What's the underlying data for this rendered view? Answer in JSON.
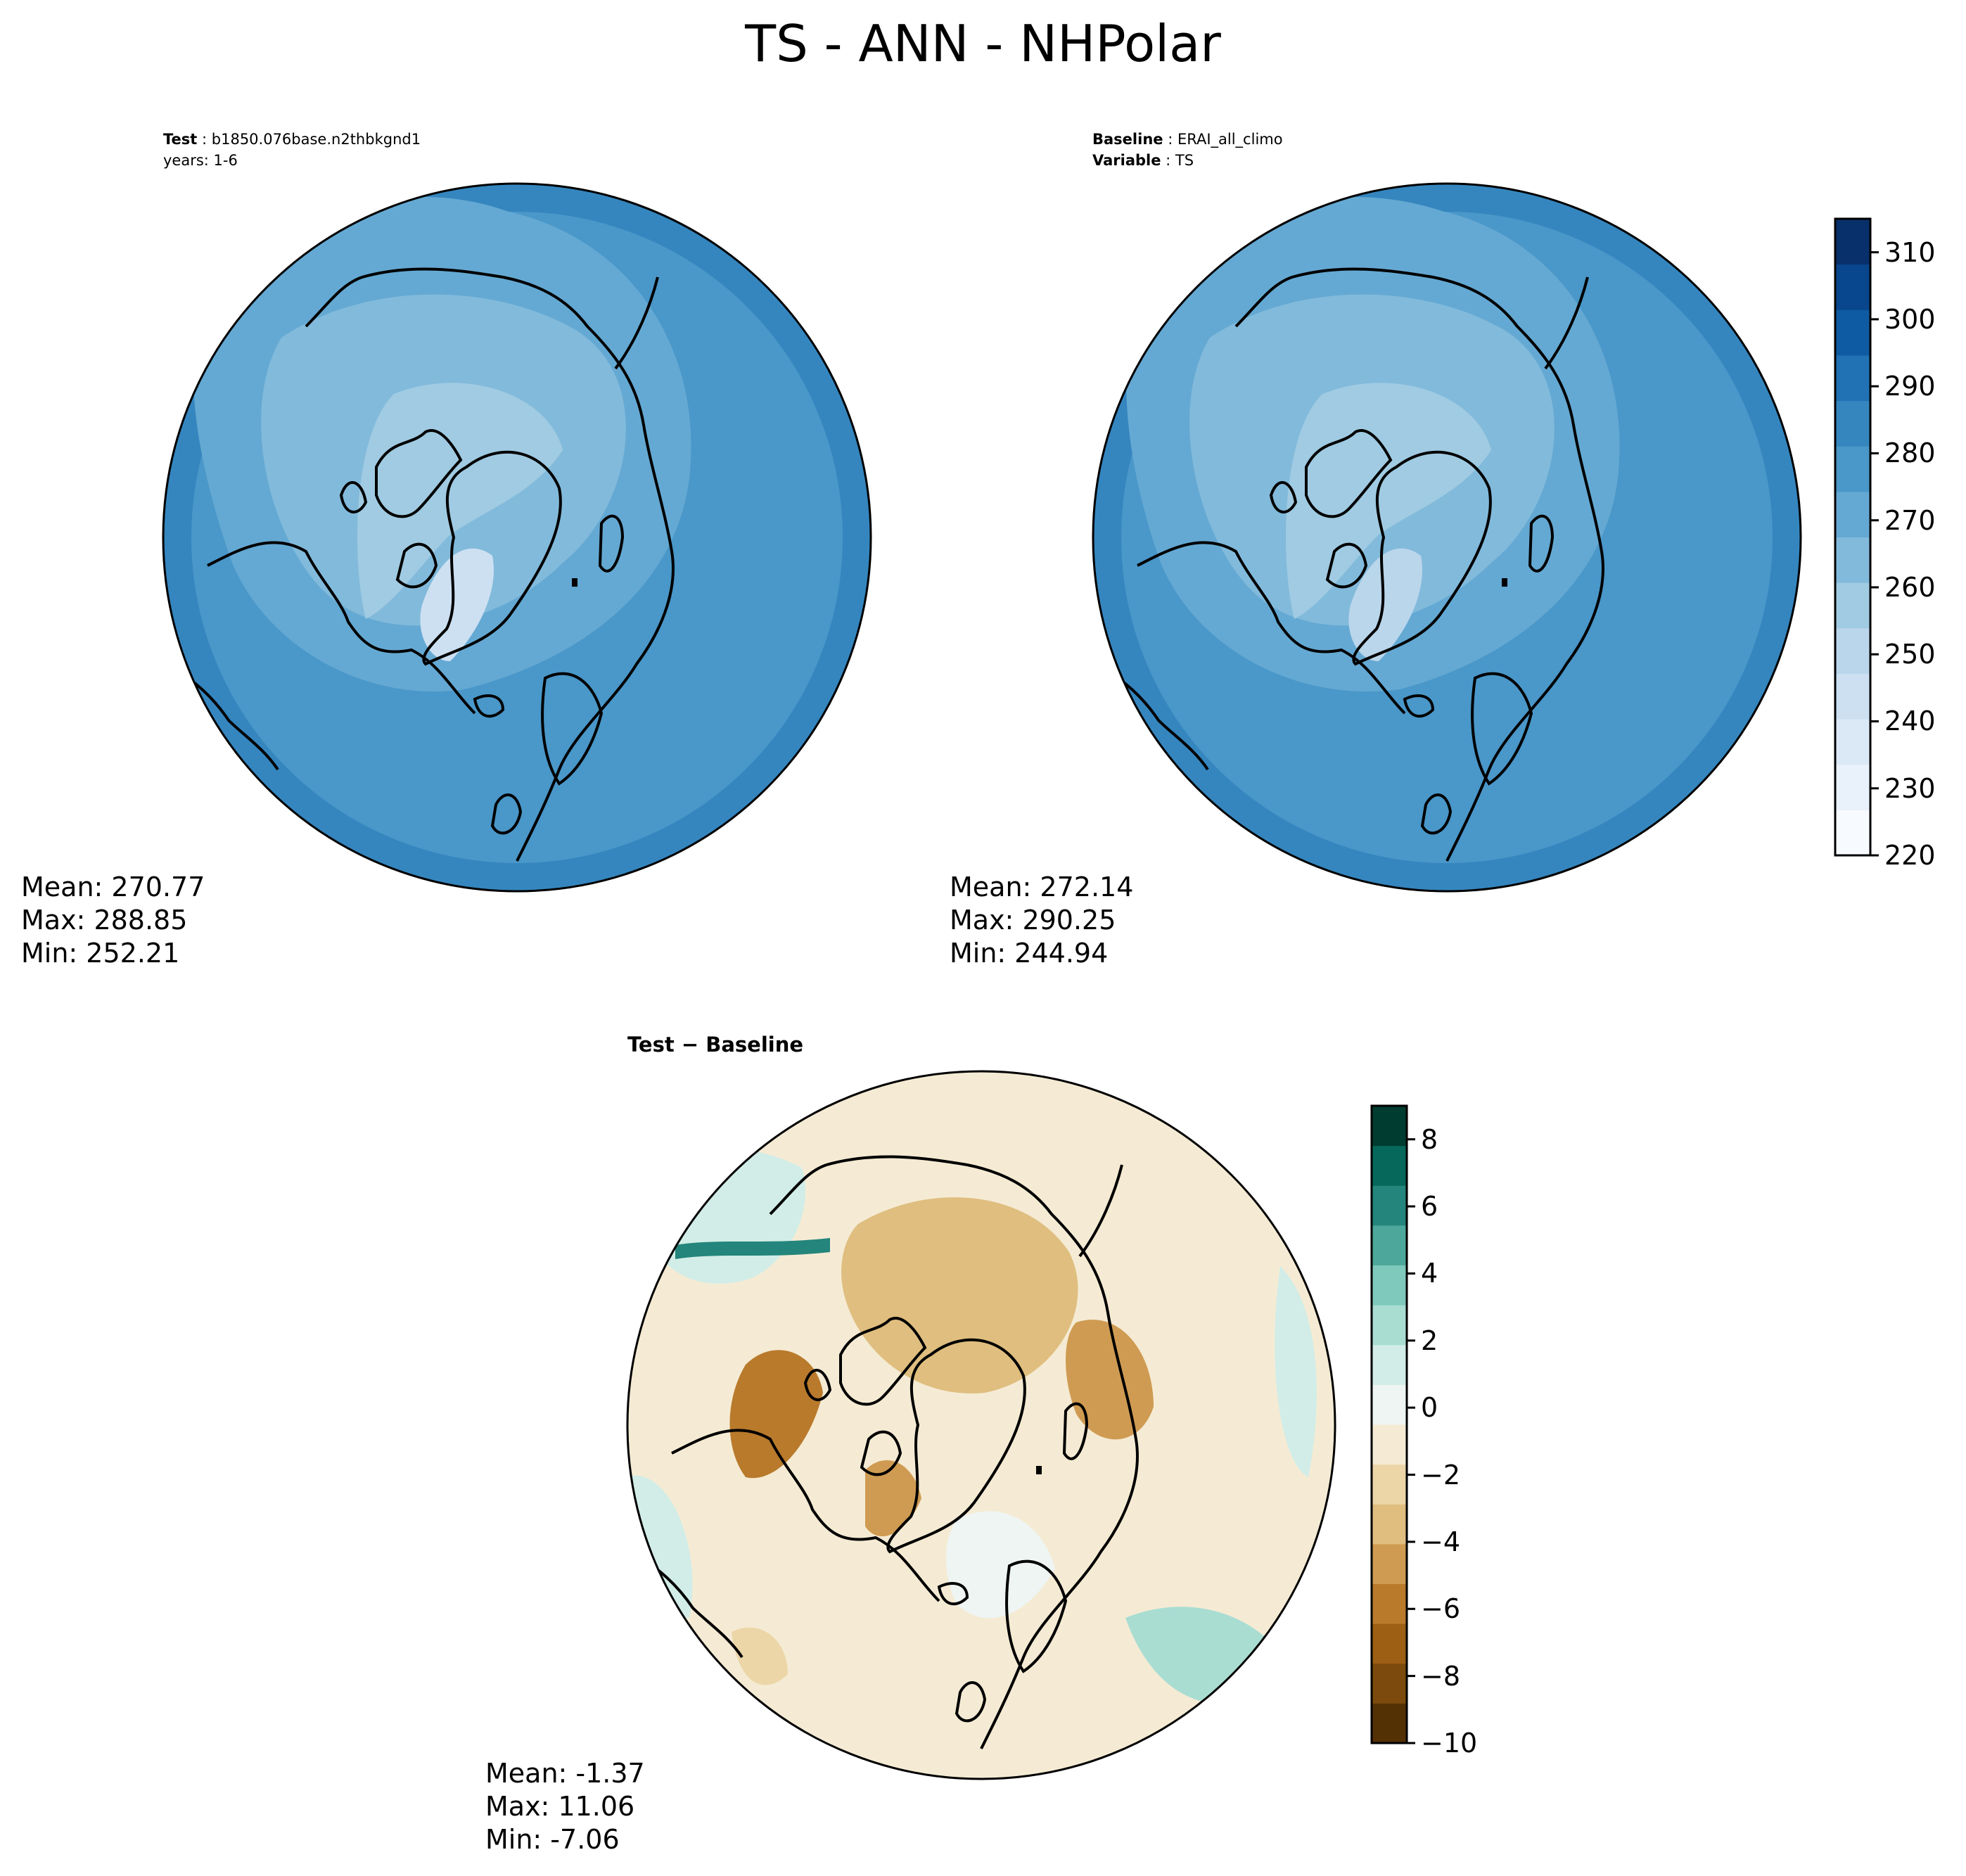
{
  "title": "TS - ANN - NHPolar",
  "panels": {
    "test": {
      "header_label_1": "Test",
      "header_value_1": "b1850.076base.n2thbkgnd1",
      "header_line_2": "years: 1-6",
      "mean": "Mean: 270.77",
      "max": "Max: 288.85",
      "min": "Min: 252.21"
    },
    "baseline": {
      "header_label_1": "Baseline",
      "header_value_1": "ERAI_all_climo",
      "header_label_2": "Variable",
      "header_value_2": "TS",
      "mean": "Mean: 272.14",
      "max": "Max: 290.25",
      "min": "Min: 244.94"
    },
    "difference": {
      "title": "Test − Baseline",
      "mean": "Mean: -1.37",
      "max": "Max: 11.06",
      "min": "Min: -7.06"
    }
  },
  "colorbar_abs": {
    "ticks": [
      "220",
      "230",
      "240",
      "250",
      "260",
      "270",
      "280",
      "290",
      "300",
      "310"
    ],
    "range": [
      220,
      315
    ],
    "colors": [
      "#f7fbff",
      "#e9f2fb",
      "#dbe9f6",
      "#cde0f2",
      "#bad6eb",
      "#a0cbe2",
      "#82badb",
      "#64a9d3",
      "#4a97c9",
      "#3586bf",
      "#2171b5",
      "#0f5ba3",
      "#08478d",
      "#08306b"
    ]
  },
  "colorbar_diff": {
    "ticks": [
      "−10",
      "−8",
      "−6",
      "−4",
      "−2",
      "0",
      "2",
      "4",
      "6",
      "8"
    ],
    "range": [
      -10,
      9
    ],
    "colors": [
      "#543005",
      "#7b4a0c",
      "#9c5f14",
      "#b97a2c",
      "#cf9b52",
      "#dfbe7f",
      "#ecd6a8",
      "#f5ebd4",
      "#eef5f3",
      "#d2ede7",
      "#a9ddd2",
      "#7fc9bc",
      "#4ea79b",
      "#23857b",
      "#06675b",
      "#003c30"
    ]
  }
}
